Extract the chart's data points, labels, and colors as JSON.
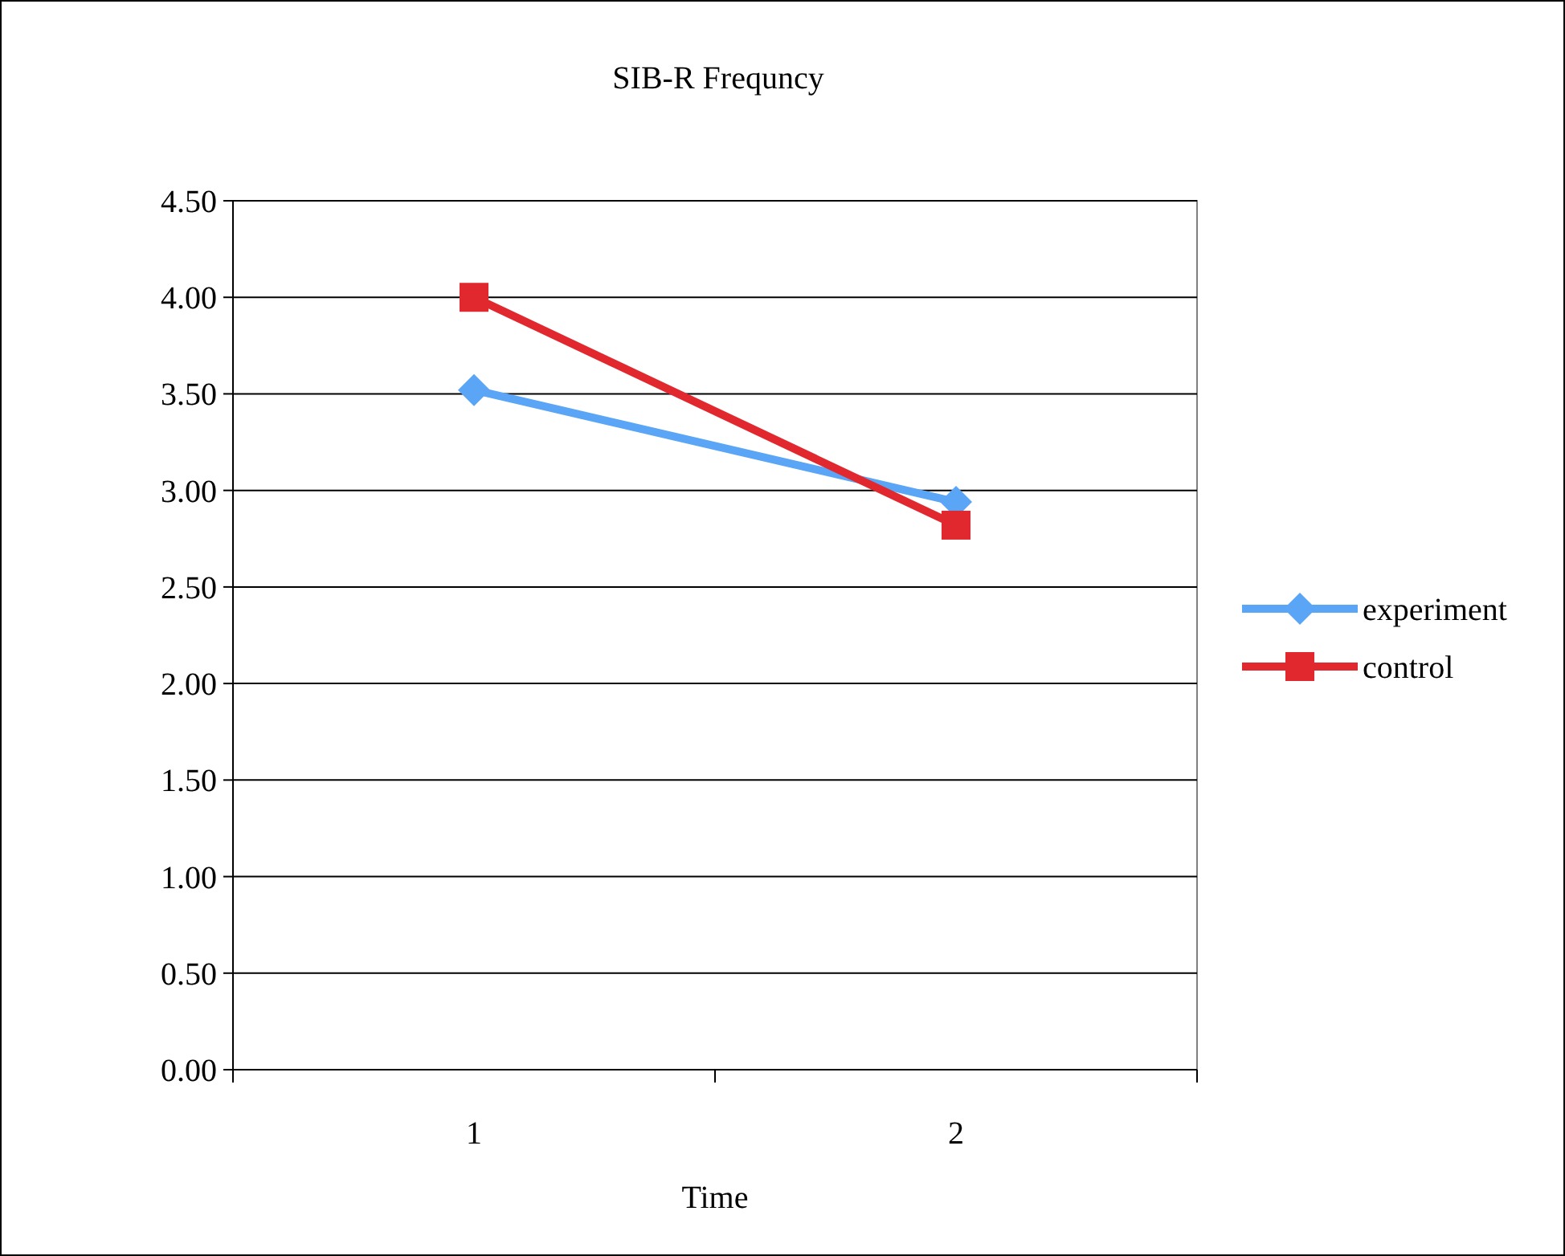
{
  "chart_data": {
    "type": "line",
    "title": "SIB-R Frequncy",
    "xlabel": "Time",
    "categories": [
      "1",
      "2"
    ],
    "series": [
      {
        "name": "experiment",
        "color": "#5aa5f5",
        "values": [
          3.52,
          2.94
        ],
        "marker": "diamond"
      },
      {
        "name": "control",
        "color": "#e0282e",
        "values": [
          4.0,
          2.82
        ],
        "marker": "square"
      }
    ],
    "ylim": [
      0,
      4.5
    ],
    "yticks": [
      {
        "value": 0,
        "label": "0.00"
      },
      {
        "value": 0.5,
        "label": "0.50"
      },
      {
        "value": 1,
        "label": "1.00"
      },
      {
        "value": 1.5,
        "label": "1.50"
      },
      {
        "value": 2,
        "label": "2.00"
      },
      {
        "value": 2.5,
        "label": "2.50"
      },
      {
        "value": 3,
        "label": "3.00"
      },
      {
        "value": 3.5,
        "label": "3.50"
      },
      {
        "value": 4,
        "label": "4.00"
      },
      {
        "value": 4.5,
        "label": "4.50"
      }
    ],
    "grid": "y",
    "legend": "right",
    "line_style": "solid"
  }
}
